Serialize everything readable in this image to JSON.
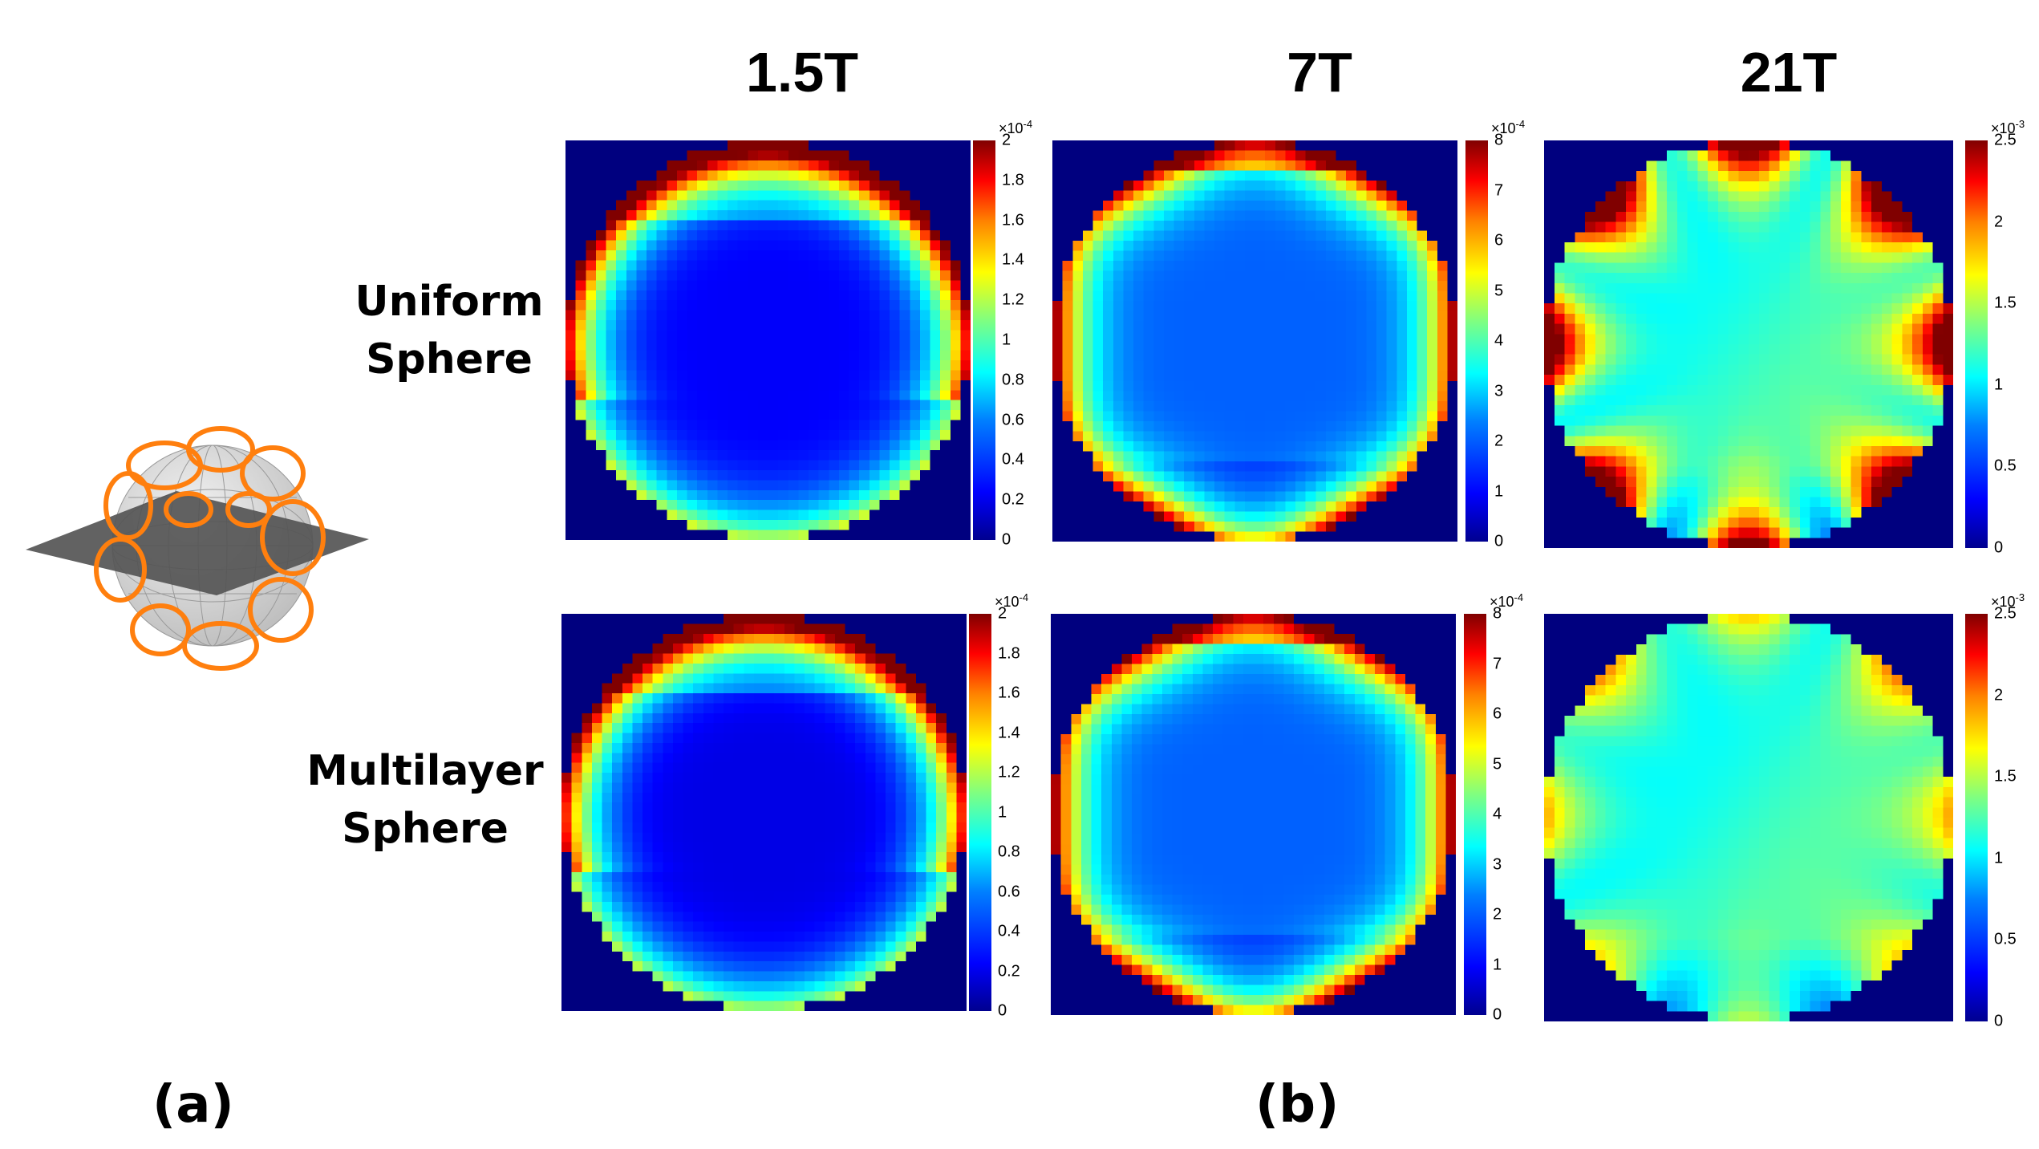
{
  "columns": [
    "1.5T",
    "7T",
    "21T"
  ],
  "rows": [
    "Uniform\nSphere",
    "Multilayer\nSphere"
  ],
  "row_labels": [
    {
      "line1": "Uniform",
      "line2": "Sphere"
    },
    {
      "line1": "Multilayer",
      "line2": "Sphere"
    }
  ],
  "panel_labels": {
    "a": "(a)",
    "b": "(b)"
  },
  "colorbars": [
    {
      "field": "1.5T",
      "exponent_base": "×10",
      "exponent": "-4",
      "max": 2,
      "ticks": [
        "0",
        "0.2",
        "0.4",
        "0.6",
        "0.8",
        "1",
        "1.2",
        "1.4",
        "1.6",
        "1.8",
        "2"
      ]
    },
    {
      "field": "7T",
      "exponent_base": "×10",
      "exponent": "-4",
      "max": 8,
      "ticks": [
        "0",
        "1",
        "2",
        "3",
        "4",
        "5",
        "6",
        "7",
        "8"
      ]
    },
    {
      "field": "21T",
      "exponent_base": "×10",
      "exponent": "-3",
      "max": 2.5,
      "ticks": [
        "0",
        "0.5",
        "1",
        "1.5",
        "2",
        "2.5"
      ]
    }
  ],
  "colors": {
    "background_map": "#00007f",
    "coil": "#ff7f0e",
    "plane": "#555555",
    "sphere": "#d9d9d9"
  }
}
